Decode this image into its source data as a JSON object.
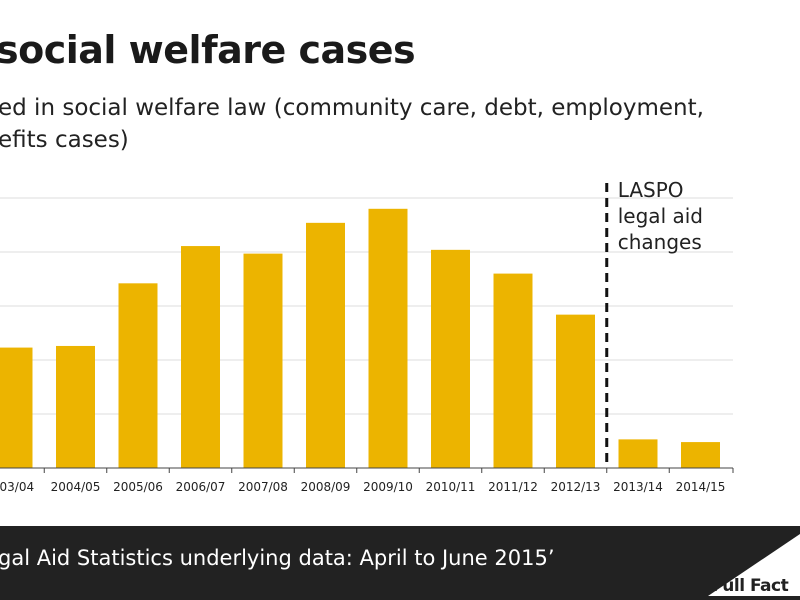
{
  "header": {
    "title": "social welfare cases",
    "subtitle_line1": "ed in social welfare law (community care, debt, employment,",
    "subtitle_line2": "efits cases)"
  },
  "annotation": {
    "lines": [
      "LASPO",
      "legal aid",
      "changes"
    ]
  },
  "footer": {
    "source": "gal Aid Statistics underlying data: April to June 2015’",
    "logo": "Full Fact"
  },
  "colors": {
    "bar": "#ECB400",
    "grid": "#dddddd",
    "footer": "#222222"
  },
  "chart_data": {
    "type": "bar",
    "categories": [
      "2003/04",
      "2004/05",
      "2005/06",
      "2006/07",
      "2007/08",
      "2008/09",
      "2009/10",
      "2010/11",
      "2011/12",
      "2012/13",
      "2013/14",
      "2014/15"
    ],
    "category_labels": [
      "003/04",
      "2004/05",
      "2005/06",
      "2006/07",
      "2007/08",
      "2008/09",
      "2009/10",
      "2010/11",
      "2011/12",
      "2012/13",
      "2013/14",
      "2014/15"
    ],
    "values": [
      2.23,
      2.26,
      3.42,
      4.11,
      3.97,
      4.54,
      4.8,
      4.04,
      3.6,
      2.84,
      0.53,
      0.48
    ],
    "ylim": [
      0,
      5.0
    ],
    "gridlines": [
      1,
      2,
      3,
      4,
      5
    ],
    "grid": true,
    "marker_after_category": "2012/13"
  }
}
